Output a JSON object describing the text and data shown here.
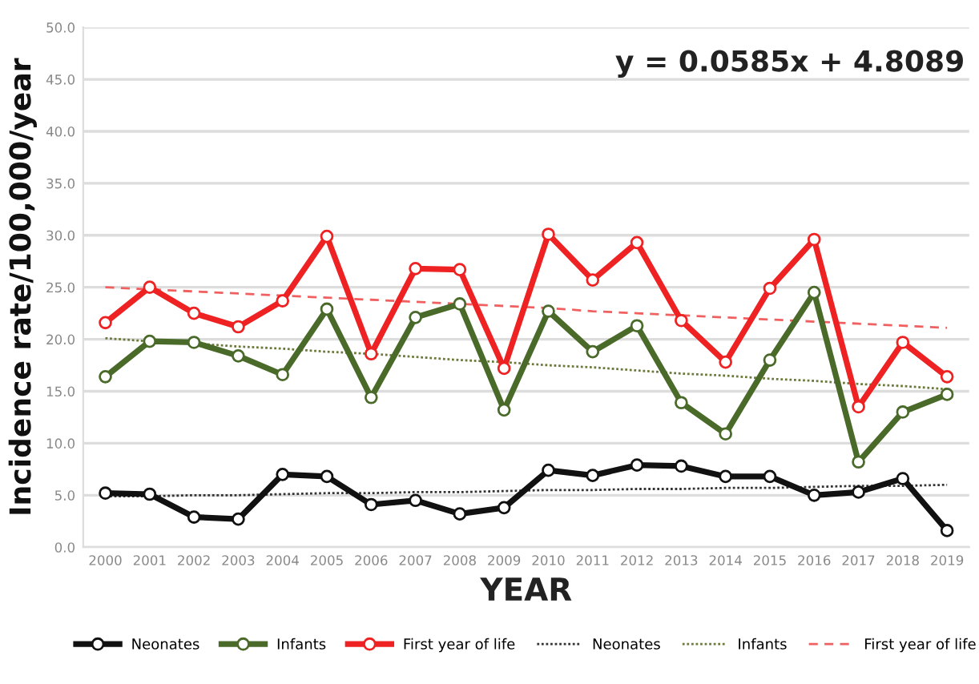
{
  "chart_data": {
    "type": "line",
    "xlabel": "YEAR",
    "ylabel": "Incidence rate/100,000/year",
    "categories": [
      "2000",
      "2001",
      "2002",
      "2003",
      "2004",
      "2005",
      "2006",
      "2007",
      "2008",
      "2009",
      "2010",
      "2011",
      "2012",
      "2013",
      "2014",
      "2015",
      "2016",
      "2017",
      "2018",
      "2019"
    ],
    "series": [
      {
        "name": "Neonates",
        "color": "#111111",
        "marker": "circle",
        "line_style": "solid",
        "values": [
          5.2,
          5.1,
          2.9,
          2.7,
          7.0,
          6.8,
          4.1,
          4.5,
          3.2,
          3.8,
          7.4,
          6.9,
          7.9,
          7.8,
          6.8,
          6.8,
          5.0,
          5.3,
          6.6,
          1.6
        ]
      },
      {
        "name": "Infants",
        "color": "#4a6a2a",
        "marker": "circle",
        "line_style": "solid",
        "values": [
          16.4,
          19.8,
          19.7,
          18.4,
          16.6,
          22.9,
          14.4,
          22.1,
          23.4,
          13.2,
          22.7,
          18.8,
          21.3,
          13.9,
          10.9,
          18.0,
          24.5,
          8.2,
          13.0,
          14.7
        ]
      },
      {
        "name": "First year of life",
        "color": "#ee2222",
        "marker": "circle",
        "line_style": "solid",
        "values": [
          21.6,
          25.0,
          22.5,
          21.2,
          23.7,
          29.9,
          18.6,
          26.8,
          26.7,
          17.2,
          30.1,
          25.7,
          29.3,
          21.8,
          17.8,
          24.9,
          29.6,
          13.5,
          19.7,
          16.4
        ]
      },
      {
        "name": "Neonates",
        "color": "#333333",
        "marker": "none",
        "line_style": "dotted",
        "values": [
          4.9,
          4.9,
          5.0,
          5.0,
          5.1,
          5.2,
          5.2,
          5.3,
          5.3,
          5.4,
          5.5,
          5.5,
          5.6,
          5.6,
          5.7,
          5.7,
          5.8,
          5.9,
          5.9,
          6.0
        ]
      },
      {
        "name": "Infants",
        "color": "#6b7a3a",
        "marker": "none",
        "line_style": "dotted",
        "values": [
          20.1,
          19.8,
          19.6,
          19.3,
          19.1,
          18.8,
          18.6,
          18.3,
          18.0,
          17.8,
          17.5,
          17.3,
          17.0,
          16.7,
          16.5,
          16.2,
          16.0,
          15.7,
          15.5,
          15.2
        ]
      },
      {
        "name": "First year of life",
        "color": "#f06060",
        "marker": "none",
        "line_style": "dashed",
        "values": [
          25.0,
          24.8,
          24.6,
          24.4,
          24.2,
          24.0,
          23.8,
          23.6,
          23.4,
          23.2,
          23.0,
          22.7,
          22.5,
          22.3,
          22.1,
          21.9,
          21.7,
          21.5,
          21.3,
          21.1
        ]
      }
    ],
    "ylim": [
      0,
      50
    ],
    "yticks": [
      {
        "value": 0,
        "label": "0.0"
      },
      {
        "value": 5,
        "label": "5.0"
      },
      {
        "value": 10,
        "label": "10.0"
      },
      {
        "value": 15,
        "label": "15.0"
      },
      {
        "value": 20,
        "label": "20.0"
      },
      {
        "value": 25,
        "label": "25.0"
      },
      {
        "value": 30,
        "label": "30.0"
      },
      {
        "value": 35,
        "label": "35.0"
      },
      {
        "value": 40,
        "label": "40.0"
      },
      {
        "value": 45,
        "label": "45.0"
      },
      {
        "value": 50,
        "label": "50.0"
      }
    ],
    "grid": "y",
    "legend": "bottom",
    "annotations": [
      "y = 0.0585x + 4.8089"
    ]
  }
}
